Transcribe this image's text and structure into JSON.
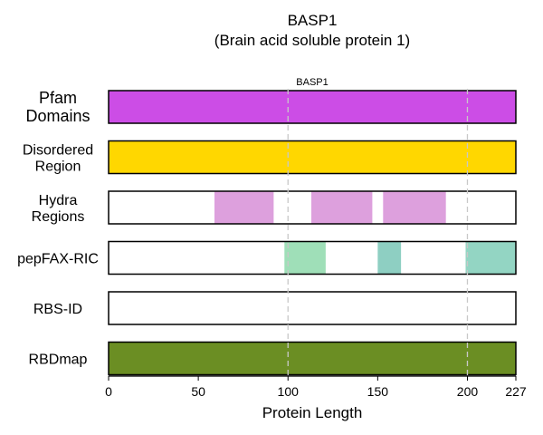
{
  "chart_data": {
    "type": "protein-track",
    "title": "BASP1",
    "subtitle": "(Brain acid soluble protein 1)",
    "xlabel": "Protein Length",
    "xlim": [
      0,
      227
    ],
    "xticks": [
      0,
      50,
      100,
      150,
      200,
      227
    ],
    "gridlines_at": [
      100,
      200
    ],
    "tracks": [
      {
        "label_lines": [
          "Pfam",
          "Domains"
        ],
        "color": "#cc4de6",
        "segments": [
          {
            "start": 0,
            "end": 227,
            "label": "BASP1"
          }
        ]
      },
      {
        "label_lines": [
          "Disordered",
          "Region"
        ],
        "color": "#ffd700",
        "segments": [
          {
            "start": 0,
            "end": 227
          }
        ]
      },
      {
        "label_lines": [
          "Hydra",
          "Regions"
        ],
        "color": "#dda0dd",
        "segments": [
          {
            "start": 59,
            "end": 92
          },
          {
            "start": 113,
            "end": 147
          },
          {
            "start": 153,
            "end": 188
          }
        ]
      },
      {
        "label_lines": [
          "pepFAX-RIC"
        ],
        "color": "#93d5c3",
        "segments": [
          {
            "start": 98,
            "end": 121,
            "color": "#9fdfb8"
          },
          {
            "start": 150,
            "end": 163,
            "color": "#8ecfc2"
          },
          {
            "start": 199,
            "end": 227,
            "color": "#93d5c3"
          }
        ]
      },
      {
        "label_lines": [
          "RBS-ID"
        ],
        "color": "#ffffff",
        "segments": []
      },
      {
        "label_lines": [
          "RBDmap"
        ],
        "color": "#6b8e23",
        "segments": [
          {
            "start": 0,
            "end": 227
          }
        ]
      }
    ]
  }
}
